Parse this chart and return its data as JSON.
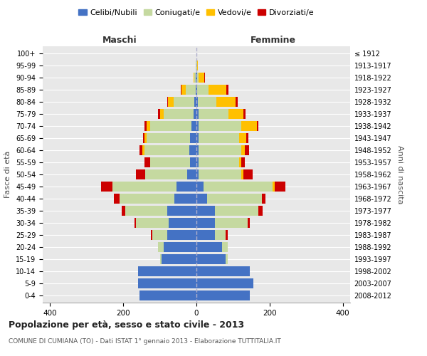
{
  "age_groups": [
    "0-4",
    "5-9",
    "10-14",
    "15-19",
    "20-24",
    "25-29",
    "30-34",
    "35-39",
    "40-44",
    "45-49",
    "50-54",
    "55-59",
    "60-64",
    "65-69",
    "70-74",
    "75-79",
    "80-84",
    "85-89",
    "90-94",
    "95-99",
    "100+"
  ],
  "birth_years": [
    "2008-2012",
    "2003-2007",
    "1998-2002",
    "1993-1997",
    "1988-1992",
    "1983-1987",
    "1978-1982",
    "1973-1977",
    "1968-1972",
    "1963-1967",
    "1958-1962",
    "1953-1957",
    "1948-1952",
    "1943-1947",
    "1938-1942",
    "1933-1937",
    "1928-1932",
    "1923-1927",
    "1918-1922",
    "1913-1917",
    "≤ 1912"
  ],
  "colors": {
    "celibe": "#4472c4",
    "coniugato": "#c5d9a0",
    "vedovo": "#ffc000",
    "divorziato": "#cc0000"
  },
  "maschi": {
    "celibe": [
      155,
      160,
      160,
      95,
      90,
      80,
      75,
      80,
      60,
      55,
      25,
      18,
      20,
      18,
      14,
      8,
      5,
      2,
      1,
      0,
      0
    ],
    "coniugato": [
      0,
      0,
      0,
      5,
      15,
      40,
      90,
      115,
      150,
      175,
      115,
      108,
      122,
      118,
      112,
      82,
      58,
      28,
      5,
      2,
      0
    ],
    "vedovo": [
      0,
      0,
      0,
      0,
      0,
      0,
      0,
      0,
      0,
      0,
      0,
      0,
      5,
      5,
      10,
      10,
      15,
      10,
      2,
      0,
      0
    ],
    "divorziato": [
      0,
      0,
      0,
      0,
      0,
      5,
      5,
      10,
      15,
      30,
      25,
      15,
      8,
      5,
      5,
      5,
      2,
      2,
      0,
      0,
      0
    ]
  },
  "femmine": {
    "nubile": [
      145,
      155,
      145,
      80,
      70,
      50,
      50,
      50,
      30,
      20,
      5,
      5,
      5,
      5,
      5,
      5,
      3,
      2,
      1,
      0,
      0
    ],
    "coniugata": [
      0,
      0,
      0,
      5,
      15,
      30,
      90,
      120,
      148,
      188,
      118,
      112,
      118,
      112,
      118,
      82,
      52,
      32,
      5,
      1,
      0
    ],
    "vedova": [
      0,
      0,
      0,
      0,
      0,
      0,
      0,
      0,
      0,
      5,
      5,
      5,
      10,
      20,
      42,
      42,
      52,
      48,
      15,
      2,
      0
    ],
    "divorziata": [
      0,
      0,
      0,
      0,
      0,
      5,
      5,
      10,
      10,
      30,
      25,
      10,
      10,
      5,
      5,
      5,
      5,
      5,
      2,
      0,
      0
    ]
  },
  "xlim": 420,
  "title": "Popolazione per età, sesso e stato civile - 2013",
  "subtitle": "COMUNE DI CUMIANA (TO) - Dati ISTAT 1° gennaio 2013 - Elaborazione TUTTITALIA.IT",
  "ylabel": "Fasce di età",
  "ylabel_right": "Anni di nascita",
  "xlabel_left": "Maschi",
  "xlabel_right": "Femmine",
  "background_color": "#e8e8e8",
  "grid_color": "#ffffff"
}
